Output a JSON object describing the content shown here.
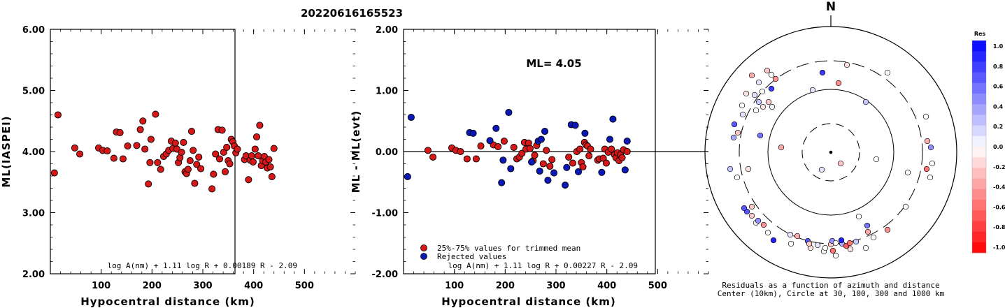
{
  "figure_title": "20220616165523",
  "chart_data": [
    {
      "type": "scatter",
      "panel": "ml-vs-distance",
      "ylabel": "ML(IASPEI)",
      "xlabel": "Hypocentral distance (km)",
      "xlim": [
        0,
        600
      ],
      "ylim": [
        2.0,
        6.0
      ],
      "xticks": [
        "100",
        "200",
        "300",
        "400",
        "500"
      ],
      "yticks": [
        "2.00",
        "3.00",
        "4.00",
        "5.00",
        "6.00"
      ],
      "formula": "log A(nm) + 1.11 log R + 0.00189 R - 2.09",
      "series": [
        {
          "color": "#d61818",
          "points": [
            [
              8,
              3.65
            ],
            [
              15,
              4.6
            ],
            [
              48,
              4.06
            ],
            [
              58,
              3.96
            ],
            [
              95,
              4.06
            ],
            [
              103,
              4.02
            ],
            [
              112,
              4.01
            ],
            [
              125,
              3.89
            ],
            [
              130,
              4.32
            ],
            [
              137,
              4.31
            ],
            [
              143,
              3.88
            ],
            [
              152,
              4.09
            ],
            [
              170,
              4.1
            ],
            [
              177,
              4.36
            ],
            [
              182,
              4.5
            ],
            [
              186,
              4.04
            ],
            [
              193,
              3.47
            ],
            [
              196,
              3.82
            ],
            [
              198,
              4.2
            ],
            [
              207,
              4.61
            ],
            [
              211,
              3.82
            ],
            [
              217,
              3.71
            ],
            [
              223,
              3.92
            ],
            [
              228,
              3.96
            ],
            [
              233,
              4.02
            ],
            [
              238,
              4.17
            ],
            [
              241,
              4.05
            ],
            [
              246,
              4.14
            ],
            [
              249,
              4.04
            ],
            [
              252,
              3.82
            ],
            [
              255,
              3.9
            ],
            [
              258,
              3.99
            ],
            [
              262,
              4.15
            ],
            [
              265,
              3.67
            ],
            [
              268,
              3.64
            ],
            [
              271,
              3.71
            ],
            [
              275,
              3.85
            ],
            [
              278,
              4.33
            ],
            [
              281,
              4.02
            ],
            [
              284,
              3.48
            ],
            [
              288,
              3.79
            ],
            [
              292,
              3.91
            ],
            [
              296,
              3.72
            ],
            [
              318,
              3.39
            ],
            [
              321,
              3.63
            ],
            [
              325,
              3.96
            ],
            [
              330,
              4.36
            ],
            [
              333,
              3.88
            ],
            [
              338,
              4.35
            ],
            [
              341,
              3.99
            ],
            [
              344,
              3.67
            ],
            [
              347,
              4.07
            ],
            [
              350,
              3.85
            ],
            [
              353,
              3.8
            ],
            [
              356,
              4.2
            ],
            [
              359,
              4.16
            ],
            [
              362,
              4.09
            ],
            [
              365,
              3.98
            ],
            [
              368,
              4.04
            ],
            [
              382,
              3.87
            ],
            [
              385,
              3.93
            ],
            [
              390,
              3.54
            ],
            [
              393,
              3.86
            ],
            [
              396,
              3.93
            ],
            [
              399,
              3.83
            ],
            [
              403,
              4.04
            ],
            [
              406,
              4.24
            ],
            [
              409,
              3.93
            ],
            [
              412,
              4.43
            ],
            [
              415,
              3.77
            ],
            [
              418,
              3.85
            ],
            [
              421,
              3.92
            ],
            [
              424,
              3.83
            ],
            [
              427,
              3.73
            ],
            [
              430,
              3.87
            ],
            [
              433,
              3.75
            ],
            [
              436,
              3.59
            ],
            [
              440,
              4.05
            ]
          ]
        }
      ]
    },
    {
      "type": "scatter",
      "panel": "residual-vs-distance",
      "ylabel": "ML - ML(evt)",
      "xlabel": "Hypocentral distance (km)",
      "xlim": [
        0,
        600
      ],
      "ylim": [
        -2.0,
        2.0
      ],
      "xticks": [
        "100",
        "200",
        "300",
        "400",
        "500"
      ],
      "yticks": [
        "-2.00",
        "-1.00",
        "0.00",
        "1.00",
        "2.00"
      ],
      "annotation": "ML= 4.05",
      "formula": "log A(nm) + 1.11 log R + 0.00227 R - 2.09",
      "legend_position": "bottom-left",
      "series": [
        {
          "name": "25%-75% values for trimmed mean",
          "color": "#d61818",
          "points": [
            [
              48,
              0.02
            ],
            [
              58,
              -0.09
            ],
            [
              95,
              0.06
            ],
            [
              103,
              0.02
            ],
            [
              112,
              0.0
            ],
            [
              125,
              -0.12
            ],
            [
              143,
              -0.12
            ],
            [
              152,
              0.09
            ],
            [
              177,
              0.11
            ],
            [
              186,
              0.08
            ],
            [
              198,
              0.17
            ],
            [
              217,
              0.07
            ],
            [
              223,
              -0.12
            ],
            [
              228,
              -0.09
            ],
            [
              233,
              -0.03
            ],
            [
              238,
              0.15
            ],
            [
              241,
              0.04
            ],
            [
              246,
              0.14
            ],
            [
              249,
              0.05
            ],
            [
              255,
              -0.15
            ],
            [
              258,
              -0.06
            ],
            [
              262,
              0.1
            ],
            [
              275,
              -0.2
            ],
            [
              281,
              0.02
            ],
            [
              288,
              -0.24
            ],
            [
              292,
              -0.13
            ],
            [
              325,
              -0.09
            ],
            [
              333,
              -0.19
            ],
            [
              341,
              0.0
            ],
            [
              347,
              0.04
            ],
            [
              350,
              -0.18
            ],
            [
              353,
              -0.25
            ],
            [
              356,
              0.15
            ],
            [
              359,
              0.11
            ],
            [
              362,
              0.09
            ],
            [
              365,
              -0.07
            ],
            [
              368,
              0.04
            ],
            [
              382,
              -0.14
            ],
            [
              385,
              -0.12
            ],
            [
              393,
              -0.11
            ],
            [
              396,
              0.04
            ],
            [
              399,
              -0.19
            ],
            [
              403,
              -0.01
            ],
            [
              409,
              0.04
            ],
            [
              415,
              -0.05
            ],
            [
              418,
              -0.1
            ],
            [
              421,
              -0.02
            ],
            [
              424,
              -0.15
            ],
            [
              427,
              -0.05
            ],
            [
              430,
              -0.1
            ],
            [
              433,
              0.03
            ],
            [
              440,
              0.0
            ]
          ]
        },
        {
          "name": "Rejected values",
          "color": "#0a18b8",
          "points": [
            [
              8,
              -0.41
            ],
            [
              15,
              0.56
            ],
            [
              130,
              0.31
            ],
            [
              137,
              0.3
            ],
            [
              170,
              0.18
            ],
            [
              182,
              0.38
            ],
            [
              193,
              -0.51
            ],
            [
              196,
              -0.14
            ],
            [
              207,
              0.64
            ],
            [
              211,
              -0.28
            ],
            [
              252,
              -0.17
            ],
            [
              265,
              0.17
            ],
            [
              268,
              -0.32
            ],
            [
              271,
              0.2
            ],
            [
              278,
              0.33
            ],
            [
              284,
              -0.47
            ],
            [
              296,
              -0.35
            ],
            [
              318,
              -0.55
            ],
            [
              321,
              -0.26
            ],
            [
              330,
              0.44
            ],
            [
              338,
              0.43
            ],
            [
              344,
              -0.33
            ],
            [
              357,
              0.3
            ],
            [
              390,
              -0.34
            ],
            [
              406,
              0.2
            ],
            [
              412,
              0.53
            ],
            [
              436,
              -0.3
            ],
            [
              440,
              0.17
            ]
          ]
        }
      ]
    },
    {
      "type": "scatter",
      "panel": "azimuthal-residuals",
      "top_label": "N",
      "caption": [
        "Residuals as a function of azimuth and distance",
        "Center (10km), Circle at 30, 100, 300 and 1000 km"
      ],
      "colorbar": {
        "title": "Res",
        "ticks": [
          "1.0",
          "0.8",
          "0.6",
          "0.4",
          "0.2",
          "0.0",
          "-0.2",
          "-0.4",
          "-0.6",
          "-0.8",
          "-1.0"
        ],
        "max_color": "#0000ff",
        "zero_color": "#ffffff",
        "min_color": "#ff0000"
      },
      "stations_res": [
        -0.15,
        0.05,
        -0.1,
        0.0,
        -0.2,
        0.05,
        0.1,
        -0.05,
        -0.1,
        0.02,
        0.0,
        0.35,
        -0.05,
        0.0,
        0.3,
        -0.1,
        0.15,
        0.05,
        0.0,
        0.25,
        -0.15,
        -0.05,
        0.1,
        0.0,
        0.35,
        -0.05,
        0.0,
        0.05,
        -0.2,
        0.1,
        0.0,
        -0.15,
        0.2,
        0.0,
        -0.1,
        0.05,
        0.0,
        -0.25,
        0.0,
        0.0,
        0.3,
        -0.1,
        0.0,
        0.2,
        -0.2,
        0.0,
        0.4,
        0.0,
        -0.15,
        0.3,
        -0.05,
        0.05,
        0.0,
        -0.25,
        0.0,
        -0.1,
        0.2,
        0.0,
        0.15,
        -0.3,
        -0.05,
        0.1,
        0.0,
        0.25,
        -0.15,
        0.0,
        -0.2,
        0.0,
        0.3,
        -0.1,
        0.05,
        0.0,
        0.4,
        -0.25,
        0.0,
        -0.1
      ]
    }
  ]
}
